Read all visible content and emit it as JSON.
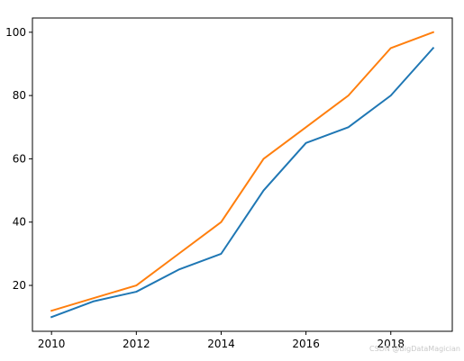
{
  "chart_data": {
    "type": "line",
    "title": "",
    "xlabel": "",
    "ylabel": "",
    "x": [
      2010,
      2011,
      2012,
      2013,
      2014,
      2015,
      2016,
      2017,
      2018,
      2019
    ],
    "series": [
      {
        "color": "#1f77b4",
        "values": [
          10,
          15,
          18,
          25,
          30,
          50,
          65,
          70,
          80,
          95
        ]
      },
      {
        "color": "#ff7f0e",
        "values": [
          12,
          16,
          20,
          30,
          40,
          60,
          70,
          80,
          95,
          100
        ]
      }
    ],
    "xlim": [
      2009.55,
      2019.45
    ],
    "ylim": [
      5.5,
      104.5
    ],
    "xticks": [
      2010,
      2012,
      2014,
      2016,
      2018
    ],
    "yticks": [
      20,
      40,
      60,
      80,
      100
    ],
    "grid": false,
    "legend": "none"
  },
  "watermark": "CSDN @BigDataMagician"
}
